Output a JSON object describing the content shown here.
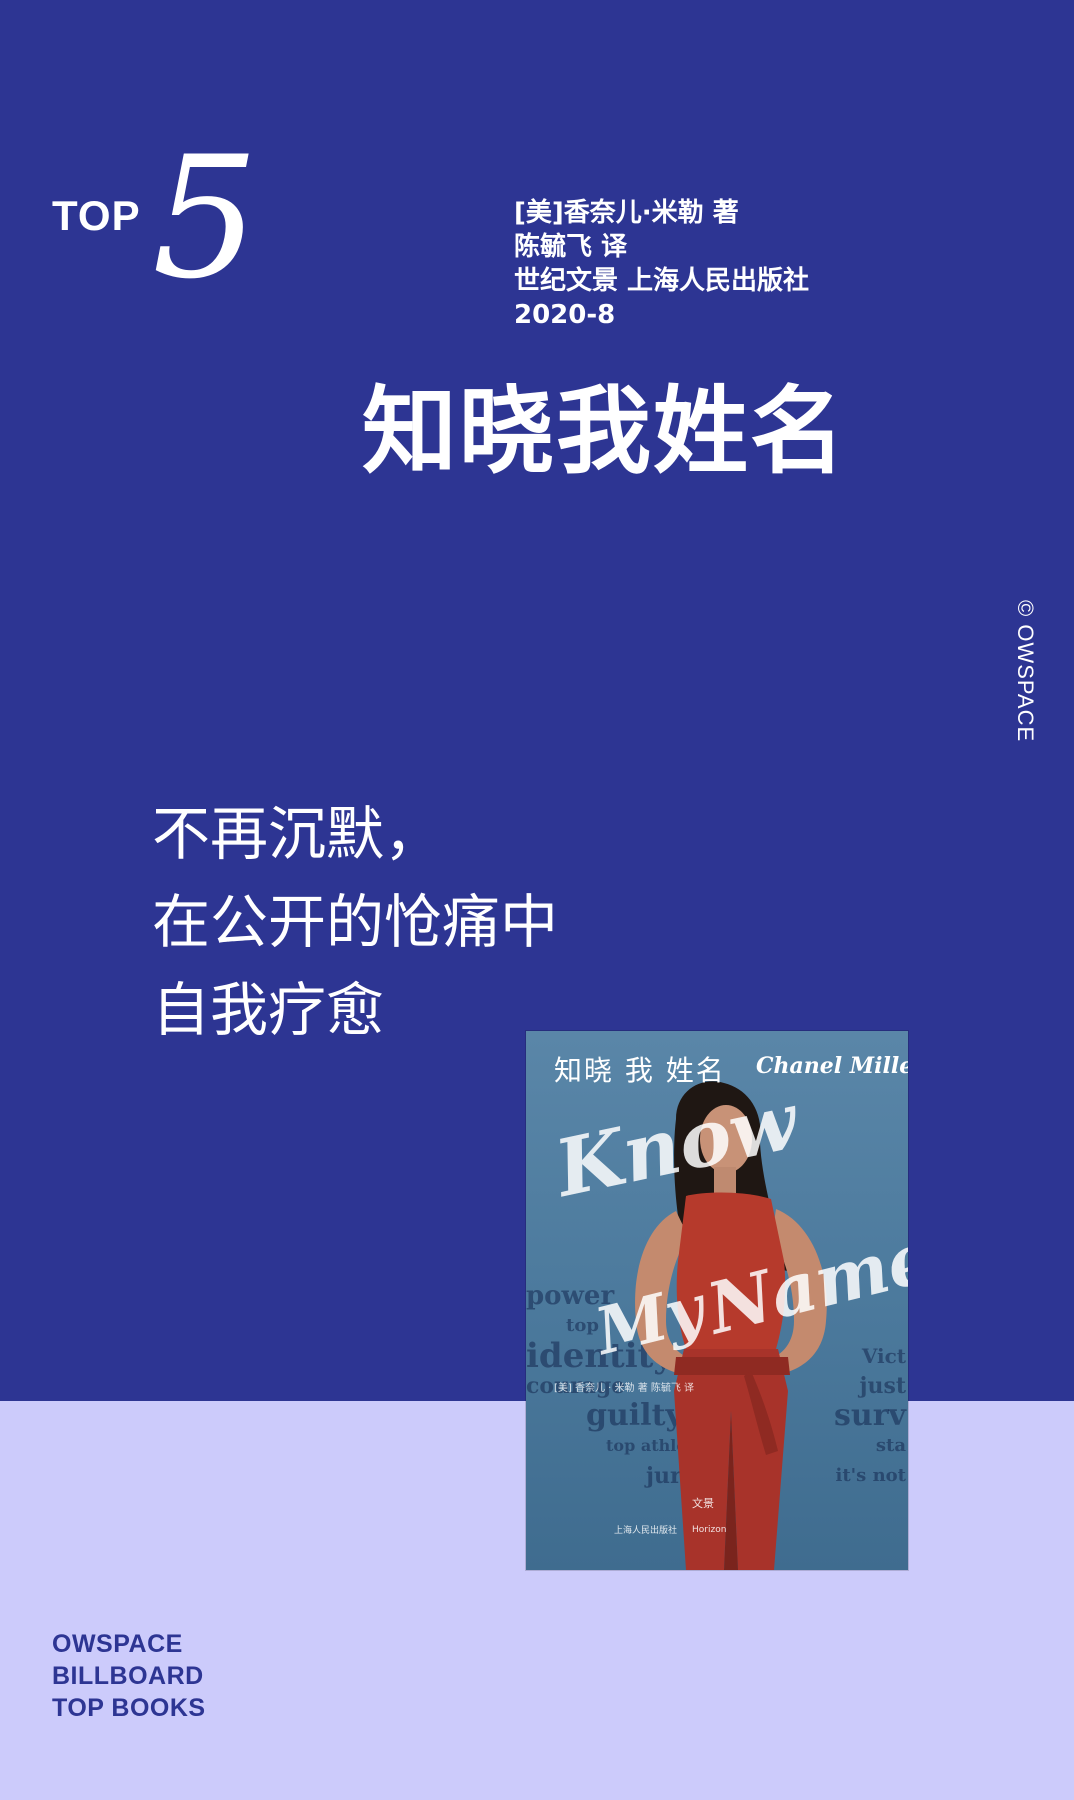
{
  "rank": {
    "label": "TOP",
    "number": "5"
  },
  "meta": {
    "author": "[美]香奈儿·米勒 著",
    "translator": "陈毓飞 译",
    "publisher": "世纪文景 上海人民出版社",
    "date": "2020-8"
  },
  "book_title": "知晓我姓名",
  "copyright": "© OWSPACE",
  "tagline": [
    "不再沉默，",
    "在公开的怆痛中",
    "自我疗愈"
  ],
  "cover": {
    "cn_title": "知晓 我 姓名",
    "author_en": "Chanel Miller",
    "script_know": "Know",
    "script_my": "My",
    "script_name": "Name",
    "words_left": [
      "power",
      "top",
      "identity",
      "courage",
      "guilty",
      "top athlete",
      "jury"
    ],
    "words_right": [
      "Vict",
      "just",
      "surv",
      "sta",
      "it's not"
    ],
    "small_cn": "[美] 香奈儿 · 米勒 著   陈毓飞 译",
    "publisher": "上海人民出版社",
    "imprint_cn": "文景",
    "imprint_en": "Horizon"
  },
  "series": [
    "OWSPACE",
    "BILLBOARD",
    "TOP BOOKS"
  ],
  "colors": {
    "primary": "#2d3593",
    "secondary": "#cccbfb",
    "dress": "#b63a2c"
  }
}
